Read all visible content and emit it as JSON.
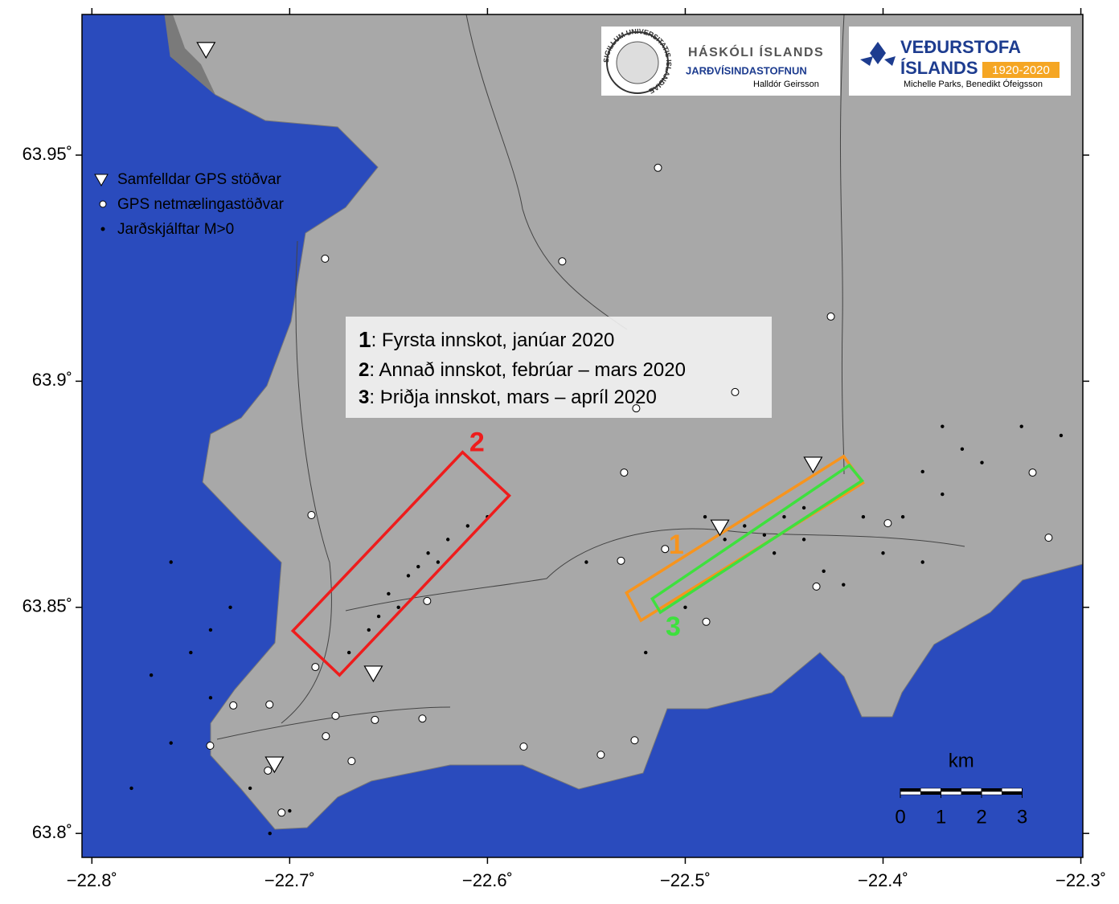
{
  "map": {
    "xlim": [
      -22.805,
      -22.299
    ],
    "ylim": [
      63.7947,
      63.9811
    ],
    "xticks": [
      {
        "value": -22.8,
        "label": "−22.8˚"
      },
      {
        "value": -22.7,
        "label": "−22.7˚"
      },
      {
        "value": -22.6,
        "label": "−22.6˚"
      },
      {
        "value": -22.5,
        "label": "−22.5˚"
      },
      {
        "value": -22.4,
        "label": "−22.4˚"
      },
      {
        "value": -22.3,
        "label": "−22.3˚"
      }
    ],
    "yticks": [
      {
        "value": 63.8,
        "label": "63.8˚"
      },
      {
        "value": 63.85,
        "label": "63.85˚"
      },
      {
        "value": 63.9,
        "label": "63.9˚"
      },
      {
        "value": 63.95,
        "label": "63.95˚"
      }
    ],
    "legend": [
      "Samfelldar GPS stöðvar",
      "GPS netmælingastöðvar",
      "Jarðskjálftar M>0"
    ],
    "annotation": [
      {
        "number": "1",
        "text": ": Fyrsta innskot, janúar 2020"
      },
      {
        "number": "2",
        "text": ": Annað innskot, febrúar – mars 2020"
      },
      {
        "number": "3",
        "text": ": Þriðja innskot, mars – apríl 2020"
      }
    ],
    "logos": {
      "seal_text": "SIGILLUM UNIVERSITATIS ISLANDIAE",
      "university": "HÁSKÓLI ÍSLANDS",
      "institute": "JARÐVÍSINDASTOFNUN",
      "author1": "Halldór Geirsson",
      "met1": "VEÐURSTOFA",
      "met2": "ÍSLANDS",
      "years": "1920-2020",
      "author2": "Michelle Parks, Benedikt Ófeigsson"
    },
    "scale_bar": {
      "unit": "km",
      "ticks": [
        0,
        1,
        2,
        3
      ]
    },
    "regions": [
      {
        "label": "2",
        "color": "#ee1c1c",
        "corners": [
          [
            -22.6984,
            63.8448
          ],
          [
            -22.6126,
            63.8843
          ],
          [
            -22.589,
            63.8747
          ],
          [
            -22.6748,
            63.835
          ]
        ]
      },
      {
        "label": "1",
        "color": "#f7941d",
        "corners": [
          [
            -22.5297,
            63.8532
          ],
          [
            -22.4199,
            63.8834
          ],
          [
            -22.4102,
            63.8775
          ],
          [
            -22.5224,
            63.8471
          ]
        ]
      },
      {
        "label": "3",
        "color": "#3ee03e",
        "corners": [
          [
            -22.5167,
            63.8519
          ],
          [
            -22.4171,
            63.8814
          ],
          [
            -22.4106,
            63.878
          ],
          [
            -22.5126,
            63.8489
          ]
        ]
      }
    ],
    "continuous_gps": [
      [
        -22.7423,
        63.9733
      ],
      [
        -22.4354,
        63.8816
      ],
      [
        -22.4825,
        63.8677
      ],
      [
        -22.6577,
        63.8354
      ],
      [
        -22.7077,
        63.8153
      ]
    ],
    "campaign_gps": [
      [
        -22.5138,
        63.9472
      ],
      [
        -22.6821,
        63.9271
      ],
      [
        -22.5622,
        63.9265
      ],
      [
        -22.4264,
        63.9143
      ],
      [
        -22.4748,
        63.8976
      ],
      [
        -22.5248,
        63.894
      ],
      [
        -22.5309,
        63.8798
      ],
      [
        -22.689,
        63.8704
      ],
      [
        -22.5102,
        63.8629
      ],
      [
        -22.5325,
        63.8603
      ],
      [
        -22.6305,
        63.8514
      ],
      [
        -22.3976,
        63.8686
      ],
      [
        -22.4337,
        63.8546
      ],
      [
        -22.4894,
        63.8468
      ],
      [
        -22.3244,
        63.8798
      ],
      [
        -22.3163,
        63.8654
      ],
      [
        -22.687,
        63.8368
      ],
      [
        -22.7285,
        63.8283
      ],
      [
        -22.7102,
        63.8285
      ],
      [
        -22.6768,
        63.826
      ],
      [
        -22.6569,
        63.8251
      ],
      [
        -22.6329,
        63.8254
      ],
      [
        -22.6817,
        63.8215
      ],
      [
        -22.6687,
        63.816
      ],
      [
        -22.7402,
        63.8194
      ],
      [
        -22.711,
        63.8139
      ],
      [
        -22.7041,
        63.8046
      ],
      [
        -22.5817,
        63.8192
      ],
      [
        -22.5427,
        63.8174
      ],
      [
        -22.5256,
        63.8206
      ]
    ],
    "earthquakes": [
      [
        -22.65,
        63.853
      ],
      [
        -22.64,
        63.857
      ],
      [
        -22.635,
        63.859
      ],
      [
        -22.645,
        63.85
      ],
      [
        -22.655,
        63.848
      ],
      [
        -22.63,
        63.862
      ],
      [
        -22.62,
        63.865
      ],
      [
        -22.66,
        63.845
      ],
      [
        -22.67,
        63.84
      ],
      [
        -22.625,
        63.86
      ],
      [
        -22.61,
        63.868
      ],
      [
        -22.6,
        63.87
      ],
      [
        -22.47,
        63.868
      ],
      [
        -22.46,
        63.866
      ],
      [
        -22.45,
        63.87
      ],
      [
        -22.44,
        63.872
      ],
      [
        -22.48,
        63.865
      ],
      [
        -22.455,
        63.862
      ],
      [
        -22.43,
        63.858
      ],
      [
        -22.49,
        63.87
      ],
      [
        -22.44,
        63.865
      ],
      [
        -22.38,
        63.88
      ],
      [
        -22.37,
        63.875
      ],
      [
        -22.39,
        63.87
      ],
      [
        -22.36,
        63.885
      ],
      [
        -22.35,
        63.882
      ],
      [
        -22.4,
        63.862
      ],
      [
        -22.42,
        63.855
      ],
      [
        -22.33,
        63.89
      ],
      [
        -22.31,
        63.888
      ],
      [
        -22.38,
        63.86
      ],
      [
        -22.41,
        63.87
      ],
      [
        -22.37,
        63.89
      ],
      [
        -22.75,
        63.84
      ],
      [
        -22.74,
        63.83
      ],
      [
        -22.76,
        63.82
      ],
      [
        -22.72,
        63.81
      ],
      [
        -22.71,
        63.8
      ],
      [
        -22.73,
        63.85
      ],
      [
        -22.77,
        63.835
      ],
      [
        -22.78,
        63.81
      ],
      [
        -22.7,
        63.805
      ],
      [
        -22.74,
        63.845
      ],
      [
        -22.76,
        63.86
      ],
      [
        -22.55,
        63.86
      ],
      [
        -22.52,
        63.84
      ],
      [
        -22.5,
        63.85
      ]
    ]
  }
}
